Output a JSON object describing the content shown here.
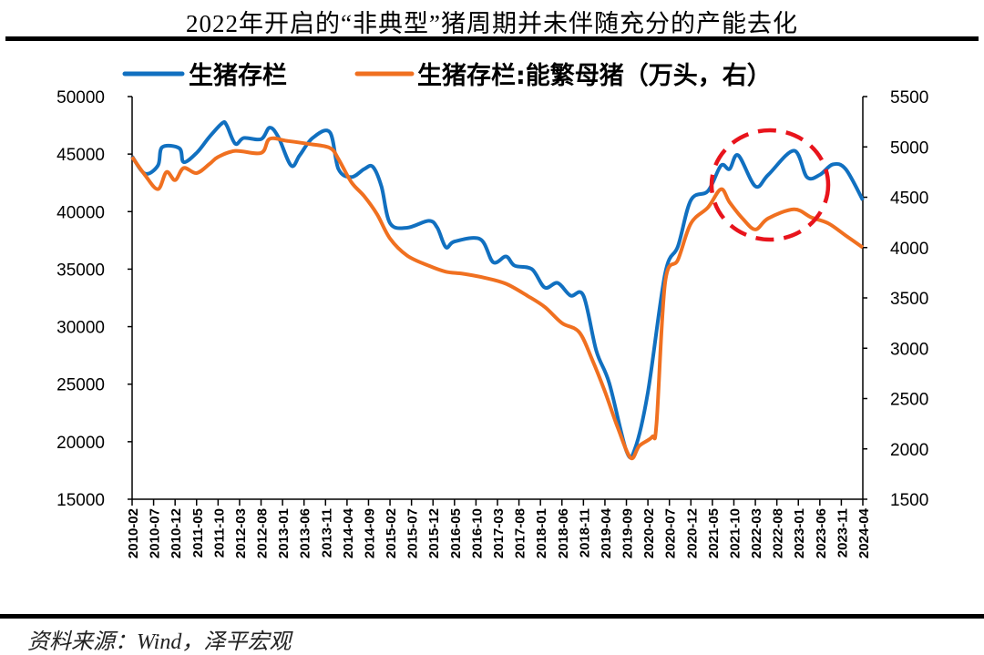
{
  "title": "2022年开启的“非典型”猪周期并未伴随充分的产能去化",
  "source": "资料来源：Wind，泽平宏观",
  "chart_data": {
    "type": "line",
    "title": "2022年开启的“非典型”猪周期并未伴随充分的产能去化",
    "legend_placement": "top",
    "left_axis": {
      "ylim": [
        15000,
        50000
      ],
      "ticks": [
        "15000",
        "20000",
        "25000",
        "30000",
        "35000",
        "40000",
        "45000",
        "50000"
      ]
    },
    "right_axis": {
      "ylim": [
        1500,
        5500
      ],
      "ticks": [
        "1500",
        "2000",
        "2500",
        "3000",
        "3500",
        "4000",
        "4500",
        "5000",
        "5500"
      ]
    },
    "x_range": [
      "2010-02",
      "2024-04"
    ],
    "x_ticks": [
      "2010-02",
      "2010-07",
      "2010-12",
      "2011-05",
      "2011-10",
      "2012-03",
      "2012-08",
      "2013-01",
      "2013-06",
      "2013-11",
      "2014-04",
      "2014-09",
      "2015-02",
      "2015-07",
      "2015-12",
      "2016-05",
      "2016-10",
      "2017-03",
      "2017-08",
      "2018-01",
      "2018-06",
      "2018-11",
      "2019-04",
      "2019-09",
      "2020-02",
      "2020-07",
      "2020-12",
      "2021-05",
      "2021-10",
      "2022-03",
      "2022-08",
      "2023-01",
      "2023-06",
      "2023-11",
      "2024-04"
    ],
    "series": [
      {
        "name": "生猪存栏",
        "axis": "left",
        "color": "#1170C0",
        "x": [
          "2010-02",
          "2010-05",
          "2010-08",
          "2010-09",
          "2011-01",
          "2011-02",
          "2011-05",
          "2011-08",
          "2011-11",
          "2011-12",
          "2012-02",
          "2012-04",
          "2012-08",
          "2012-10",
          "2012-12",
          "2013-03",
          "2013-05",
          "2013-08",
          "2013-12",
          "2014-02",
          "2014-05",
          "2014-08",
          "2014-10",
          "2014-12",
          "2015-02",
          "2015-06",
          "2015-11",
          "2016-01",
          "2016-03",
          "2016-05",
          "2016-11",
          "2017-02",
          "2017-05",
          "2017-07",
          "2017-11",
          "2018-02",
          "2018-05",
          "2018-08",
          "2018-11",
          "2019-02",
          "2019-05",
          "2019-09",
          "2019-11",
          "2020-02",
          "2020-06",
          "2020-09",
          "2020-12",
          "2021-04",
          "2021-07",
          "2021-09",
          "2021-11",
          "2022-03",
          "2022-06",
          "2022-12",
          "2023-03",
          "2023-06",
          "2023-09",
          "2023-12",
          "2024-04"
        ],
        "values": [
          44800,
          43300,
          44000,
          45600,
          45500,
          44300,
          45100,
          46500,
          47700,
          47500,
          45900,
          46400,
          46300,
          47300,
          46500,
          44000,
          44900,
          46400,
          46900,
          43700,
          43000,
          43700,
          43900,
          42200,
          39000,
          38600,
          39200,
          38600,
          36900,
          37400,
          37600,
          35600,
          36100,
          35300,
          35000,
          33400,
          33800,
          32700,
          32700,
          27900,
          25100,
          19200,
          19400,
          24300,
          34600,
          37000,
          41000,
          41800,
          44000,
          43700,
          44900,
          42200,
          43200,
          45300,
          43000,
          43200,
          44100,
          43700,
          41000
        ]
      },
      {
        "name": "生猪存栏:能繁母猪（万头，右）",
        "axis": "right",
        "color": "#F07020",
        "x": [
          "2010-02",
          "2010-05",
          "2010-08",
          "2010-10",
          "2010-12",
          "2011-02",
          "2011-05",
          "2011-08",
          "2011-10",
          "2012-02",
          "2012-08",
          "2012-10",
          "2013-02",
          "2013-07",
          "2013-12",
          "2014-02",
          "2014-05",
          "2014-08",
          "2014-11",
          "2015-02",
          "2015-06",
          "2015-11",
          "2016-03",
          "2016-07",
          "2016-12",
          "2017-05",
          "2017-10",
          "2018-02",
          "2018-06",
          "2018-10",
          "2019-01",
          "2019-04",
          "2019-07",
          "2019-10",
          "2019-12",
          "2020-03",
          "2020-04",
          "2020-06",
          "2020-09",
          "2020-12",
          "2021-04",
          "2021-07",
          "2021-09",
          "2021-12",
          "2022-03",
          "2022-06",
          "2022-12",
          "2023-04",
          "2023-08",
          "2023-12",
          "2024-04"
        ],
        "values": [
          4900,
          4720,
          4580,
          4750,
          4670,
          4790,
          4740,
          4830,
          4900,
          4960,
          4940,
          5080,
          5060,
          5030,
          4990,
          4880,
          4650,
          4510,
          4330,
          4090,
          3920,
          3820,
          3760,
          3740,
          3700,
          3640,
          3520,
          3410,
          3250,
          3160,
          2890,
          2570,
          2210,
          1910,
          2030,
          2120,
          2250,
          3650,
          3880,
          4240,
          4400,
          4580,
          4450,
          4290,
          4180,
          4290,
          4380,
          4300,
          4240,
          4120,
          4000
        ]
      }
    ]
  }
}
